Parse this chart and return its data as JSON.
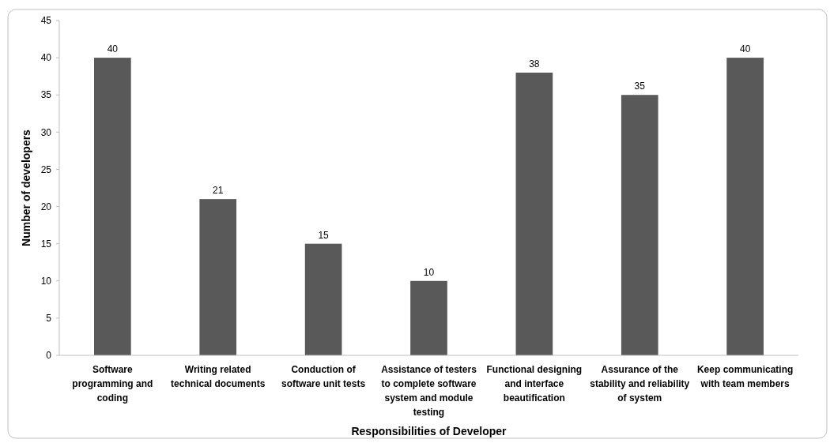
{
  "chart_data": {
    "type": "bar",
    "xlabel": "Responsibilities of Developer",
    "ylabel": "Number of developers",
    "categories": [
      "Software programming and coding",
      "Writing related technical documents",
      "Conduction of software unit tests",
      "Assistance of testers to complete software system and module testing",
      "Functional designing and interface beautification",
      "Assurance of the stability and reliability of system",
      "Keep communicating with team members"
    ],
    "values": [
      40,
      21,
      15,
      10,
      38,
      35,
      40
    ],
    "color": "#595959",
    "ylim": [
      0,
      45
    ],
    "yticks": [
      0,
      5,
      10,
      15,
      20,
      25,
      30,
      35,
      40,
      45
    ],
    "data_labels": true,
    "grid": false
  }
}
